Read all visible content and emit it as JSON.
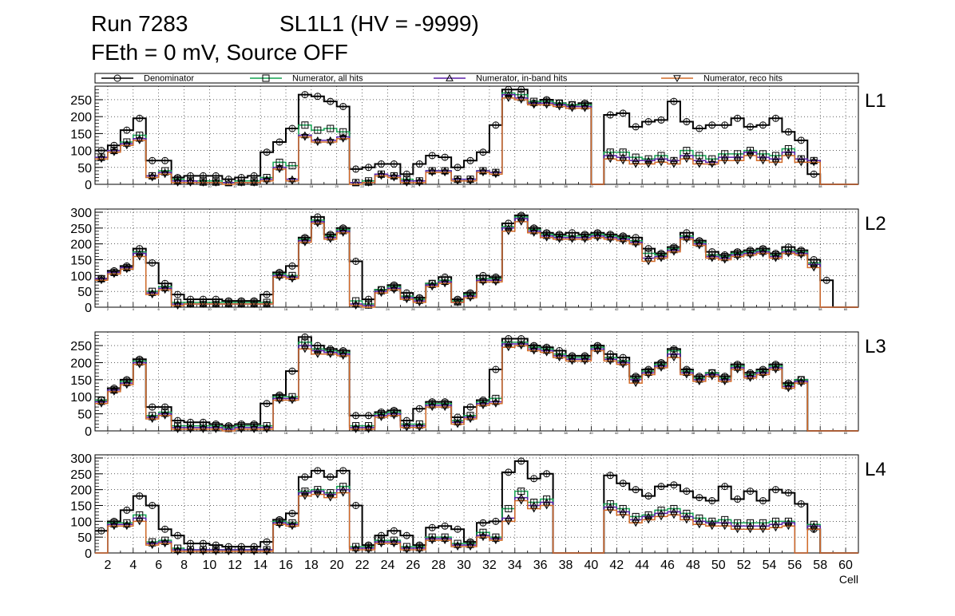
{
  "header": {
    "run": "Run 7283",
    "sl": "SL1L1 (HV = -9999)",
    "subtitle": "FEth = 0 mV, Source OFF"
  },
  "colors": {
    "denominator": "#000000",
    "all_hits": "#13a351",
    "inband_hits": "#5b1fa8",
    "reco_hits": "#d26b28"
  },
  "chart_data": {
    "type": "histogram-step",
    "xlabel": "Cell",
    "xlim": [
      1,
      61
    ],
    "bin_width": 1,
    "bin_start": 1,
    "x_tick_labels": [
      "2",
      "4",
      "6",
      "8",
      "10",
      "12",
      "14",
      "16",
      "18",
      "20",
      "22",
      "24",
      "26",
      "28",
      "30",
      "32",
      "34",
      "36",
      "38",
      "40",
      "42",
      "44",
      "46",
      "48",
      "50",
      "52",
      "54",
      "56",
      "58",
      "60"
    ],
    "legend": {
      "placement": "top",
      "entries": [
        {
          "key": "denominator",
          "label": "Denominator",
          "marker": "circle"
        },
        {
          "key": "all_hits",
          "label": "Numerator, all hits",
          "marker": "square"
        },
        {
          "key": "inband_hits",
          "label": "Numerator, in-band hits",
          "marker": "triangle-up"
        },
        {
          "key": "reco_hits",
          "label": "Numerator, reco hits",
          "marker": "triangle-down"
        }
      ]
    },
    "panels": [
      {
        "label": "L1",
        "ylim": [
          0,
          290
        ],
        "yticks": [
          "0",
          "50",
          "100",
          "150",
          "200",
          "250"
        ],
        "series": {
          "denominator": [
            100,
            115,
            160,
            195,
            70,
            70,
            20,
            25,
            25,
            25,
            15,
            20,
            25,
            95,
            125,
            165,
            265,
            260,
            245,
            230,
            45,
            50,
            60,
            60,
            30,
            60,
            85,
            80,
            50,
            70,
            95,
            175,
            280,
            280,
            240,
            250,
            240,
            235,
            240,
            0,
            205,
            210,
            170,
            185,
            190,
            245,
            185,
            165,
            175,
            175,
            195,
            170,
            175,
            195,
            155,
            130,
            30,
            0,
            0,
            0
          ],
          "all_hits": [
            80,
            100,
            125,
            145,
            25,
            40,
            15,
            10,
            10,
            10,
            5,
            10,
            10,
            20,
            65,
            55,
            175,
            160,
            165,
            155,
            5,
            10,
            30,
            25,
            15,
            10,
            40,
            40,
            15,
            15,
            40,
            35,
            270,
            265,
            245,
            245,
            240,
            235,
            235,
            0,
            95,
            95,
            80,
            75,
            85,
            70,
            100,
            85,
            75,
            90,
            90,
            100,
            90,
            85,
            105,
            75,
            70,
            0,
            0,
            0
          ],
          "inband_hits": [
            80,
            100,
            120,
            135,
            25,
            35,
            10,
            10,
            5,
            5,
            5,
            5,
            5,
            15,
            50,
            15,
            145,
            130,
            130,
            140,
            5,
            5,
            30,
            25,
            10,
            10,
            40,
            40,
            15,
            15,
            40,
            35,
            265,
            255,
            240,
            240,
            235,
            230,
            230,
            0,
            85,
            80,
            70,
            70,
            75,
            70,
            85,
            70,
            65,
            80,
            80,
            95,
            80,
            75,
            95,
            75,
            70,
            0,
            0,
            0
          ],
          "reco_hits": [
            75,
            95,
            115,
            130,
            20,
            30,
            5,
            5,
            5,
            5,
            0,
            5,
            5,
            10,
            45,
            10,
            140,
            125,
            125,
            135,
            0,
            5,
            25,
            20,
            5,
            5,
            35,
            35,
            10,
            10,
            35,
            30,
            255,
            250,
            235,
            235,
            230,
            225,
            225,
            0,
            75,
            70,
            60,
            60,
            65,
            60,
            75,
            60,
            60,
            70,
            70,
            85,
            70,
            65,
            85,
            65,
            65,
            0,
            0,
            0
          ]
        }
      },
      {
        "label": "L2",
        "ylim": [
          0,
          310
        ],
        "yticks": [
          "0",
          "50",
          "100",
          "150",
          "200",
          "250",
          "300"
        ],
        "series": {
          "denominator": [
            90,
            115,
            130,
            185,
            140,
            75,
            40,
            25,
            25,
            25,
            20,
            20,
            20,
            40,
            110,
            130,
            220,
            285,
            230,
            250,
            145,
            25,
            55,
            70,
            45,
            30,
            75,
            95,
            25,
            45,
            100,
            95,
            265,
            290,
            250,
            235,
            230,
            235,
            230,
            235,
            230,
            225,
            220,
            185,
            170,
            190,
            235,
            210,
            175,
            165,
            175,
            180,
            185,
            170,
            190,
            180,
            150,
            85,
            0,
            0
          ],
          "all_hits": [
            90,
            110,
            125,
            175,
            50,
            65,
            15,
            15,
            15,
            15,
            15,
            15,
            15,
            15,
            105,
            100,
            215,
            275,
            225,
            245,
            20,
            10,
            55,
            65,
            35,
            25,
            75,
            85,
            20,
            40,
            90,
            90,
            255,
            285,
            245,
            230,
            225,
            225,
            225,
            230,
            225,
            220,
            210,
            170,
            165,
            185,
            225,
            205,
            165,
            160,
            170,
            175,
            180,
            165,
            180,
            175,
            140,
            0,
            0,
            0
          ],
          "inband_hits": [
            90,
            110,
            125,
            170,
            45,
            60,
            10,
            10,
            10,
            10,
            10,
            10,
            10,
            10,
            100,
            95,
            210,
            270,
            220,
            240,
            10,
            5,
            50,
            60,
            30,
            20,
            70,
            80,
            15,
            35,
            85,
            85,
            250,
            280,
            240,
            225,
            220,
            220,
            220,
            225,
            220,
            215,
            205,
            155,
            160,
            180,
            220,
            200,
            160,
            155,
            165,
            170,
            175,
            160,
            175,
            170,
            135,
            0,
            0,
            0
          ],
          "reco_hits": [
            85,
            105,
            120,
            160,
            40,
            55,
            5,
            10,
            10,
            10,
            10,
            10,
            10,
            10,
            95,
            90,
            205,
            265,
            215,
            235,
            5,
            0,
            45,
            55,
            25,
            15,
            65,
            75,
            15,
            30,
            80,
            80,
            240,
            270,
            235,
            220,
            215,
            215,
            215,
            220,
            215,
            210,
            200,
            145,
            155,
            175,
            215,
            195,
            155,
            150,
            160,
            165,
            170,
            155,
            170,
            165,
            125,
            0,
            0,
            0
          ]
        }
      },
      {
        "label": "L3",
        "ylim": [
          0,
          290
        ],
        "yticks": [
          "0",
          "50",
          "100",
          "150",
          "200",
          "250"
        ],
        "series": {
          "denominator": [
            90,
            125,
            150,
            210,
            70,
            70,
            30,
            25,
            25,
            20,
            15,
            20,
            20,
            80,
            105,
            175,
            275,
            250,
            240,
            235,
            45,
            45,
            55,
            60,
            30,
            65,
            85,
            85,
            40,
            70,
            90,
            180,
            270,
            270,
            250,
            245,
            235,
            220,
            220,
            250,
            225,
            215,
            160,
            180,
            200,
            240,
            180,
            160,
            170,
            160,
            195,
            170,
            180,
            195,
            140,
            150,
            0,
            0,
            0,
            0
          ],
          "all_hits": [
            90,
            120,
            145,
            205,
            45,
            55,
            15,
            15,
            15,
            15,
            10,
            15,
            15,
            15,
            100,
            100,
            260,
            240,
            235,
            230,
            15,
            15,
            50,
            55,
            20,
            20,
            80,
            80,
            30,
            45,
            85,
            95,
            260,
            260,
            245,
            240,
            225,
            215,
            215,
            245,
            215,
            205,
            155,
            175,
            195,
            235,
            175,
            155,
            170,
            155,
            190,
            165,
            175,
            190,
            135,
            150,
            0,
            0,
            0,
            0
          ],
          "inband_hits": [
            85,
            120,
            140,
            200,
            40,
            50,
            10,
            10,
            10,
            10,
            5,
            10,
            10,
            10,
            95,
            95,
            250,
            235,
            230,
            225,
            10,
            10,
            45,
            50,
            15,
            15,
            75,
            75,
            25,
            40,
            80,
            85,
            255,
            255,
            240,
            235,
            220,
            210,
            210,
            240,
            210,
            200,
            150,
            170,
            190,
            225,
            170,
            150,
            165,
            150,
            185,
            160,
            170,
            185,
            130,
            145,
            0,
            0,
            0,
            0
          ],
          "reco_hits": [
            80,
            115,
            135,
            195,
            35,
            45,
            5,
            5,
            5,
            5,
            0,
            5,
            5,
            5,
            90,
            90,
            240,
            225,
            225,
            220,
            5,
            5,
            40,
            45,
            10,
            10,
            70,
            70,
            20,
            35,
            75,
            80,
            245,
            250,
            235,
            230,
            215,
            205,
            205,
            235,
            205,
            195,
            140,
            165,
            185,
            215,
            165,
            145,
            160,
            145,
            180,
            155,
            165,
            180,
            125,
            140,
            0,
            0,
            0,
            0
          ]
        }
      },
      {
        "label": "L4",
        "ylim": [
          0,
          310
        ],
        "yticks": [
          "0",
          "50",
          "100",
          "150",
          "200",
          "250",
          "300"
        ],
        "series": {
          "denominator": [
            70,
            100,
            135,
            180,
            150,
            75,
            55,
            30,
            30,
            25,
            20,
            20,
            20,
            35,
            105,
            125,
            240,
            260,
            240,
            260,
            150,
            25,
            55,
            70,
            55,
            25,
            80,
            85,
            75,
            35,
            95,
            100,
            255,
            290,
            235,
            250,
            0,
            0,
            0,
            0,
            245,
            220,
            200,
            180,
            210,
            215,
            195,
            175,
            165,
            210,
            170,
            195,
            165,
            200,
            190,
            155,
            75,
            0,
            0,
            0
          ],
          "all_hits": [
            0,
            95,
            95,
            120,
            35,
            40,
            15,
            10,
            10,
            10,
            10,
            10,
            10,
            10,
            100,
            95,
            195,
            200,
            190,
            210,
            20,
            20,
            40,
            40,
            20,
            20,
            50,
            50,
            30,
            30,
            65,
            50,
            140,
            195,
            160,
            170,
            0,
            0,
            0,
            0,
            155,
            140,
            115,
            120,
            135,
            140,
            125,
            110,
            100,
            105,
            95,
            95,
            95,
            100,
            100,
            0,
            90,
            0,
            0,
            0
          ],
          "inband_hits": [
            0,
            90,
            90,
            110,
            30,
            35,
            10,
            10,
            10,
            10,
            10,
            10,
            10,
            10,
            95,
            90,
            190,
            195,
            185,
            200,
            15,
            15,
            35,
            35,
            15,
            15,
            45,
            45,
            25,
            25,
            55,
            45,
            110,
            175,
            150,
            160,
            0,
            0,
            0,
            0,
            145,
            130,
            105,
            115,
            125,
            130,
            115,
            100,
            95,
            95,
            85,
            85,
            85,
            90,
            95,
            0,
            85,
            0,
            0,
            0
          ],
          "reco_hits": [
            0,
            85,
            85,
            100,
            25,
            30,
            5,
            5,
            5,
            5,
            5,
            5,
            5,
            5,
            90,
            85,
            180,
            185,
            175,
            190,
            10,
            10,
            30,
            30,
            10,
            10,
            40,
            40,
            20,
            20,
            50,
            40,
            100,
            165,
            140,
            150,
            0,
            0,
            0,
            0,
            135,
            120,
            95,
            105,
            115,
            120,
            105,
            90,
            85,
            85,
            75,
            75,
            75,
            80,
            85,
            0,
            75,
            0,
            0,
            0
          ]
        }
      }
    ]
  }
}
